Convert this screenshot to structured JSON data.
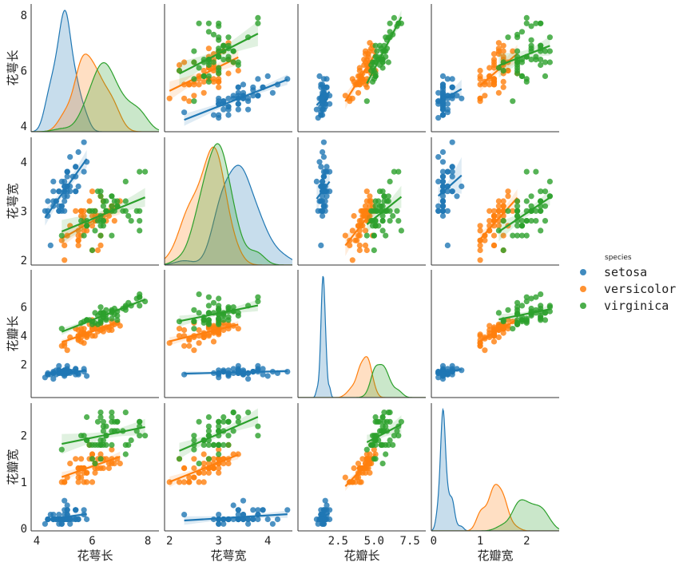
{
  "chart_data": {
    "type": "pairplot",
    "variables": [
      "花萼长",
      "花萼宽",
      "花瓣长",
      "花瓣宽"
    ],
    "ranges": [
      [
        3.8,
        8.4
      ],
      [
        1.9,
        4.5
      ],
      [
        -0.3,
        8.6
      ],
      [
        -0.05,
        2.7
      ]
    ],
    "ticks": [
      [
        {
          "v": 4,
          "t": "4"
        },
        {
          "v": 6,
          "t": "6"
        },
        {
          "v": 8,
          "t": "8"
        }
      ],
      [
        {
          "v": 2,
          "t": "2"
        },
        {
          "v": 3,
          "t": "3"
        },
        {
          "v": 4,
          "t": "4"
        }
      ],
      [
        {
          "v": 2,
          "t": "2"
        },
        {
          "v": 4,
          "t": "4"
        },
        {
          "v": 6,
          "t": "6"
        }
      ],
      [
        {
          "v": 0,
          "t": "0"
        },
        {
          "v": 1,
          "t": "1"
        },
        {
          "v": 2,
          "t": "2"
        }
      ]
    ],
    "x_ticks_petal_length": [
      {
        "v": 2.5,
        "t": "2.5"
      },
      {
        "v": 5.0,
        "t": "5.0"
      },
      {
        "v": 7.5,
        "t": "7.5"
      }
    ],
    "diag_kind": "kde",
    "offdiag_kind": "reg",
    "legend": {
      "title": "species",
      "items": [
        {
          "name": "setosa",
          "color": "#1f77b4"
        },
        {
          "name": "versicolor",
          "color": "#ff7f0e"
        },
        {
          "name": "virginica",
          "color": "#2ca02c"
        }
      ]
    },
    "series": [
      {
        "name": "setosa",
        "color": "#1f77b4",
        "points": [
          [
            5.1,
            3.5,
            1.4,
            0.2
          ],
          [
            4.9,
            3.0,
            1.4,
            0.2
          ],
          [
            4.7,
            3.2,
            1.3,
            0.2
          ],
          [
            4.6,
            3.1,
            1.5,
            0.2
          ],
          [
            5.0,
            3.6,
            1.4,
            0.2
          ],
          [
            5.4,
            3.9,
            1.7,
            0.4
          ],
          [
            4.6,
            3.4,
            1.4,
            0.3
          ],
          [
            5.0,
            3.4,
            1.5,
            0.2
          ],
          [
            4.4,
            2.9,
            1.4,
            0.2
          ],
          [
            4.9,
            3.1,
            1.5,
            0.1
          ],
          [
            5.4,
            3.7,
            1.5,
            0.2
          ],
          [
            4.8,
            3.4,
            1.6,
            0.2
          ],
          [
            4.8,
            3.0,
            1.4,
            0.1
          ],
          [
            4.3,
            3.0,
            1.1,
            0.1
          ],
          [
            5.8,
            4.0,
            1.2,
            0.2
          ],
          [
            5.7,
            4.4,
            1.5,
            0.4
          ],
          [
            5.4,
            3.9,
            1.3,
            0.4
          ],
          [
            5.1,
            3.5,
            1.4,
            0.3
          ],
          [
            5.7,
            3.8,
            1.7,
            0.3
          ],
          [
            5.1,
            3.8,
            1.5,
            0.3
          ],
          [
            5.4,
            3.4,
            1.7,
            0.2
          ],
          [
            5.1,
            3.7,
            1.5,
            0.4
          ],
          [
            4.6,
            3.6,
            1.0,
            0.2
          ],
          [
            5.1,
            3.3,
            1.7,
            0.5
          ],
          [
            4.8,
            3.4,
            1.9,
            0.2
          ],
          [
            5.0,
            3.0,
            1.6,
            0.2
          ],
          [
            5.0,
            3.4,
            1.6,
            0.4
          ],
          [
            5.2,
            3.5,
            1.5,
            0.2
          ],
          [
            5.2,
            3.4,
            1.4,
            0.2
          ],
          [
            4.7,
            3.2,
            1.6,
            0.2
          ],
          [
            4.8,
            3.1,
            1.6,
            0.2
          ],
          [
            5.4,
            3.4,
            1.5,
            0.4
          ],
          [
            5.2,
            4.1,
            1.5,
            0.1
          ],
          [
            5.5,
            4.2,
            1.4,
            0.2
          ],
          [
            4.9,
            3.1,
            1.5,
            0.2
          ],
          [
            5.0,
            3.2,
            1.2,
            0.2
          ],
          [
            5.5,
            3.5,
            1.3,
            0.2
          ],
          [
            4.9,
            3.6,
            1.4,
            0.1
          ],
          [
            4.4,
            3.0,
            1.3,
            0.2
          ],
          [
            5.1,
            3.4,
            1.5,
            0.2
          ],
          [
            5.0,
            3.5,
            1.3,
            0.3
          ],
          [
            4.5,
            2.3,
            1.3,
            0.3
          ],
          [
            4.4,
            3.2,
            1.3,
            0.2
          ],
          [
            5.0,
            3.5,
            1.6,
            0.6
          ],
          [
            5.1,
            3.8,
            1.9,
            0.4
          ],
          [
            4.8,
            3.0,
            1.4,
            0.3
          ],
          [
            5.1,
            3.8,
            1.6,
            0.2
          ],
          [
            4.6,
            3.2,
            1.4,
            0.2
          ],
          [
            5.3,
            3.7,
            1.5,
            0.2
          ],
          [
            5.0,
            3.3,
            1.4,
            0.2
          ]
        ]
      },
      {
        "name": "versicolor",
        "color": "#ff7f0e",
        "points": [
          [
            7.0,
            3.2,
            4.7,
            1.4
          ],
          [
            6.4,
            3.2,
            4.5,
            1.5
          ],
          [
            6.9,
            3.1,
            4.9,
            1.5
          ],
          [
            5.5,
            2.3,
            4.0,
            1.3
          ],
          [
            6.5,
            2.8,
            4.6,
            1.5
          ],
          [
            5.7,
            2.8,
            4.5,
            1.3
          ],
          [
            6.3,
            3.3,
            4.7,
            1.6
          ],
          [
            4.9,
            2.4,
            3.3,
            1.0
          ],
          [
            6.6,
            2.9,
            4.6,
            1.3
          ],
          [
            5.2,
            2.7,
            3.9,
            1.4
          ],
          [
            5.0,
            2.0,
            3.5,
            1.0
          ],
          [
            5.9,
            3.0,
            4.2,
            1.5
          ],
          [
            6.0,
            2.2,
            4.0,
            1.0
          ],
          [
            6.1,
            2.9,
            4.7,
            1.4
          ],
          [
            5.6,
            2.9,
            3.6,
            1.3
          ],
          [
            6.7,
            3.1,
            4.4,
            1.4
          ],
          [
            5.6,
            3.0,
            4.5,
            1.5
          ],
          [
            5.8,
            2.7,
            4.1,
            1.0
          ],
          [
            6.2,
            2.2,
            4.5,
            1.5
          ],
          [
            5.6,
            2.5,
            3.9,
            1.1
          ],
          [
            5.9,
            3.2,
            4.8,
            1.8
          ],
          [
            6.1,
            2.8,
            4.0,
            1.3
          ],
          [
            6.3,
            2.5,
            4.9,
            1.5
          ],
          [
            6.1,
            2.8,
            4.7,
            1.2
          ],
          [
            6.4,
            2.9,
            4.3,
            1.3
          ],
          [
            6.6,
            3.0,
            4.4,
            1.4
          ],
          [
            6.8,
            2.8,
            4.8,
            1.4
          ],
          [
            6.7,
            3.0,
            5.0,
            1.7
          ],
          [
            6.0,
            2.9,
            4.5,
            1.5
          ],
          [
            5.7,
            2.6,
            3.5,
            1.0
          ],
          [
            5.5,
            2.4,
            3.8,
            1.1
          ],
          [
            5.5,
            2.4,
            3.7,
            1.0
          ],
          [
            5.8,
            2.7,
            3.9,
            1.2
          ],
          [
            6.0,
            2.7,
            5.1,
            1.6
          ],
          [
            5.4,
            3.0,
            4.5,
            1.5
          ],
          [
            6.0,
            3.4,
            4.5,
            1.6
          ],
          [
            6.7,
            3.1,
            4.7,
            1.5
          ],
          [
            6.3,
            2.3,
            4.4,
            1.3
          ],
          [
            5.6,
            3.0,
            4.1,
            1.3
          ],
          [
            5.5,
            2.5,
            4.0,
            1.3
          ],
          [
            5.5,
            2.6,
            4.4,
            1.2
          ],
          [
            6.1,
            3.0,
            4.6,
            1.4
          ],
          [
            5.8,
            2.6,
            4.0,
            1.2
          ],
          [
            5.0,
            2.3,
            3.3,
            1.0
          ],
          [
            5.6,
            2.7,
            4.2,
            1.3
          ],
          [
            5.7,
            3.0,
            4.2,
            1.2
          ],
          [
            5.7,
            2.9,
            4.2,
            1.3
          ],
          [
            6.2,
            2.9,
            4.3,
            1.3
          ],
          [
            5.1,
            2.5,
            3.0,
            1.1
          ],
          [
            5.7,
            2.8,
            4.1,
            1.3
          ]
        ]
      },
      {
        "name": "virginica",
        "color": "#2ca02c",
        "points": [
          [
            6.3,
            3.3,
            6.0,
            2.5
          ],
          [
            5.8,
            2.7,
            5.1,
            1.9
          ],
          [
            7.1,
            3.0,
            5.9,
            2.1
          ],
          [
            6.3,
            2.9,
            5.6,
            1.8
          ],
          [
            6.5,
            3.0,
            5.8,
            2.2
          ],
          [
            7.6,
            3.0,
            6.6,
            2.1
          ],
          [
            4.9,
            2.5,
            4.5,
            1.7
          ],
          [
            7.3,
            2.9,
            6.3,
            1.8
          ],
          [
            6.7,
            2.5,
            5.8,
            1.8
          ],
          [
            7.2,
            3.6,
            6.1,
            2.5
          ],
          [
            6.5,
            3.2,
            5.1,
            2.0
          ],
          [
            6.4,
            2.7,
            5.3,
            1.9
          ],
          [
            6.8,
            3.0,
            5.5,
            2.1
          ],
          [
            5.7,
            2.5,
            5.0,
            2.0
          ],
          [
            5.8,
            2.8,
            5.1,
            2.4
          ],
          [
            6.4,
            3.2,
            5.3,
            2.3
          ],
          [
            6.5,
            3.0,
            5.5,
            1.8
          ],
          [
            7.7,
            3.8,
            6.7,
            2.2
          ],
          [
            7.7,
            2.6,
            6.9,
            2.3
          ],
          [
            6.0,
            2.2,
            5.0,
            1.5
          ],
          [
            6.9,
            3.2,
            5.7,
            2.3
          ],
          [
            5.6,
            2.8,
            4.9,
            2.0
          ],
          [
            7.7,
            2.8,
            6.7,
            2.0
          ],
          [
            6.3,
            2.7,
            4.9,
            1.8
          ],
          [
            6.7,
            3.3,
            5.7,
            2.1
          ],
          [
            7.2,
            3.2,
            6.0,
            1.8
          ],
          [
            6.2,
            2.8,
            4.8,
            1.8
          ],
          [
            6.1,
            3.0,
            4.9,
            1.8
          ],
          [
            6.4,
            2.8,
            5.6,
            2.1
          ],
          [
            7.2,
            3.0,
            5.8,
            1.6
          ],
          [
            7.4,
            2.8,
            6.1,
            1.9
          ],
          [
            7.9,
            3.8,
            6.4,
            2.0
          ],
          [
            6.4,
            2.8,
            5.6,
            2.2
          ],
          [
            6.3,
            2.8,
            5.1,
            1.5
          ],
          [
            6.1,
            2.6,
            5.6,
            1.4
          ],
          [
            7.7,
            3.0,
            6.1,
            2.3
          ],
          [
            6.3,
            3.4,
            5.6,
            2.4
          ],
          [
            6.4,
            3.1,
            5.5,
            1.8
          ],
          [
            6.0,
            3.0,
            4.8,
            1.8
          ],
          [
            6.9,
            3.1,
            5.4,
            2.1
          ],
          [
            6.7,
            3.1,
            5.6,
            2.4
          ],
          [
            6.9,
            3.1,
            5.1,
            2.3
          ],
          [
            5.8,
            2.7,
            5.1,
            1.9
          ],
          [
            6.8,
            3.2,
            5.9,
            2.3
          ],
          [
            6.7,
            3.3,
            5.7,
            2.5
          ],
          [
            6.7,
            3.0,
            5.2,
            2.3
          ],
          [
            6.3,
            2.5,
            5.0,
            1.9
          ],
          [
            6.5,
            3.0,
            5.2,
            2.0
          ],
          [
            6.2,
            3.4,
            5.4,
            2.3
          ],
          [
            5.9,
            3.0,
            5.1,
            1.8
          ]
        ]
      }
    ]
  }
}
